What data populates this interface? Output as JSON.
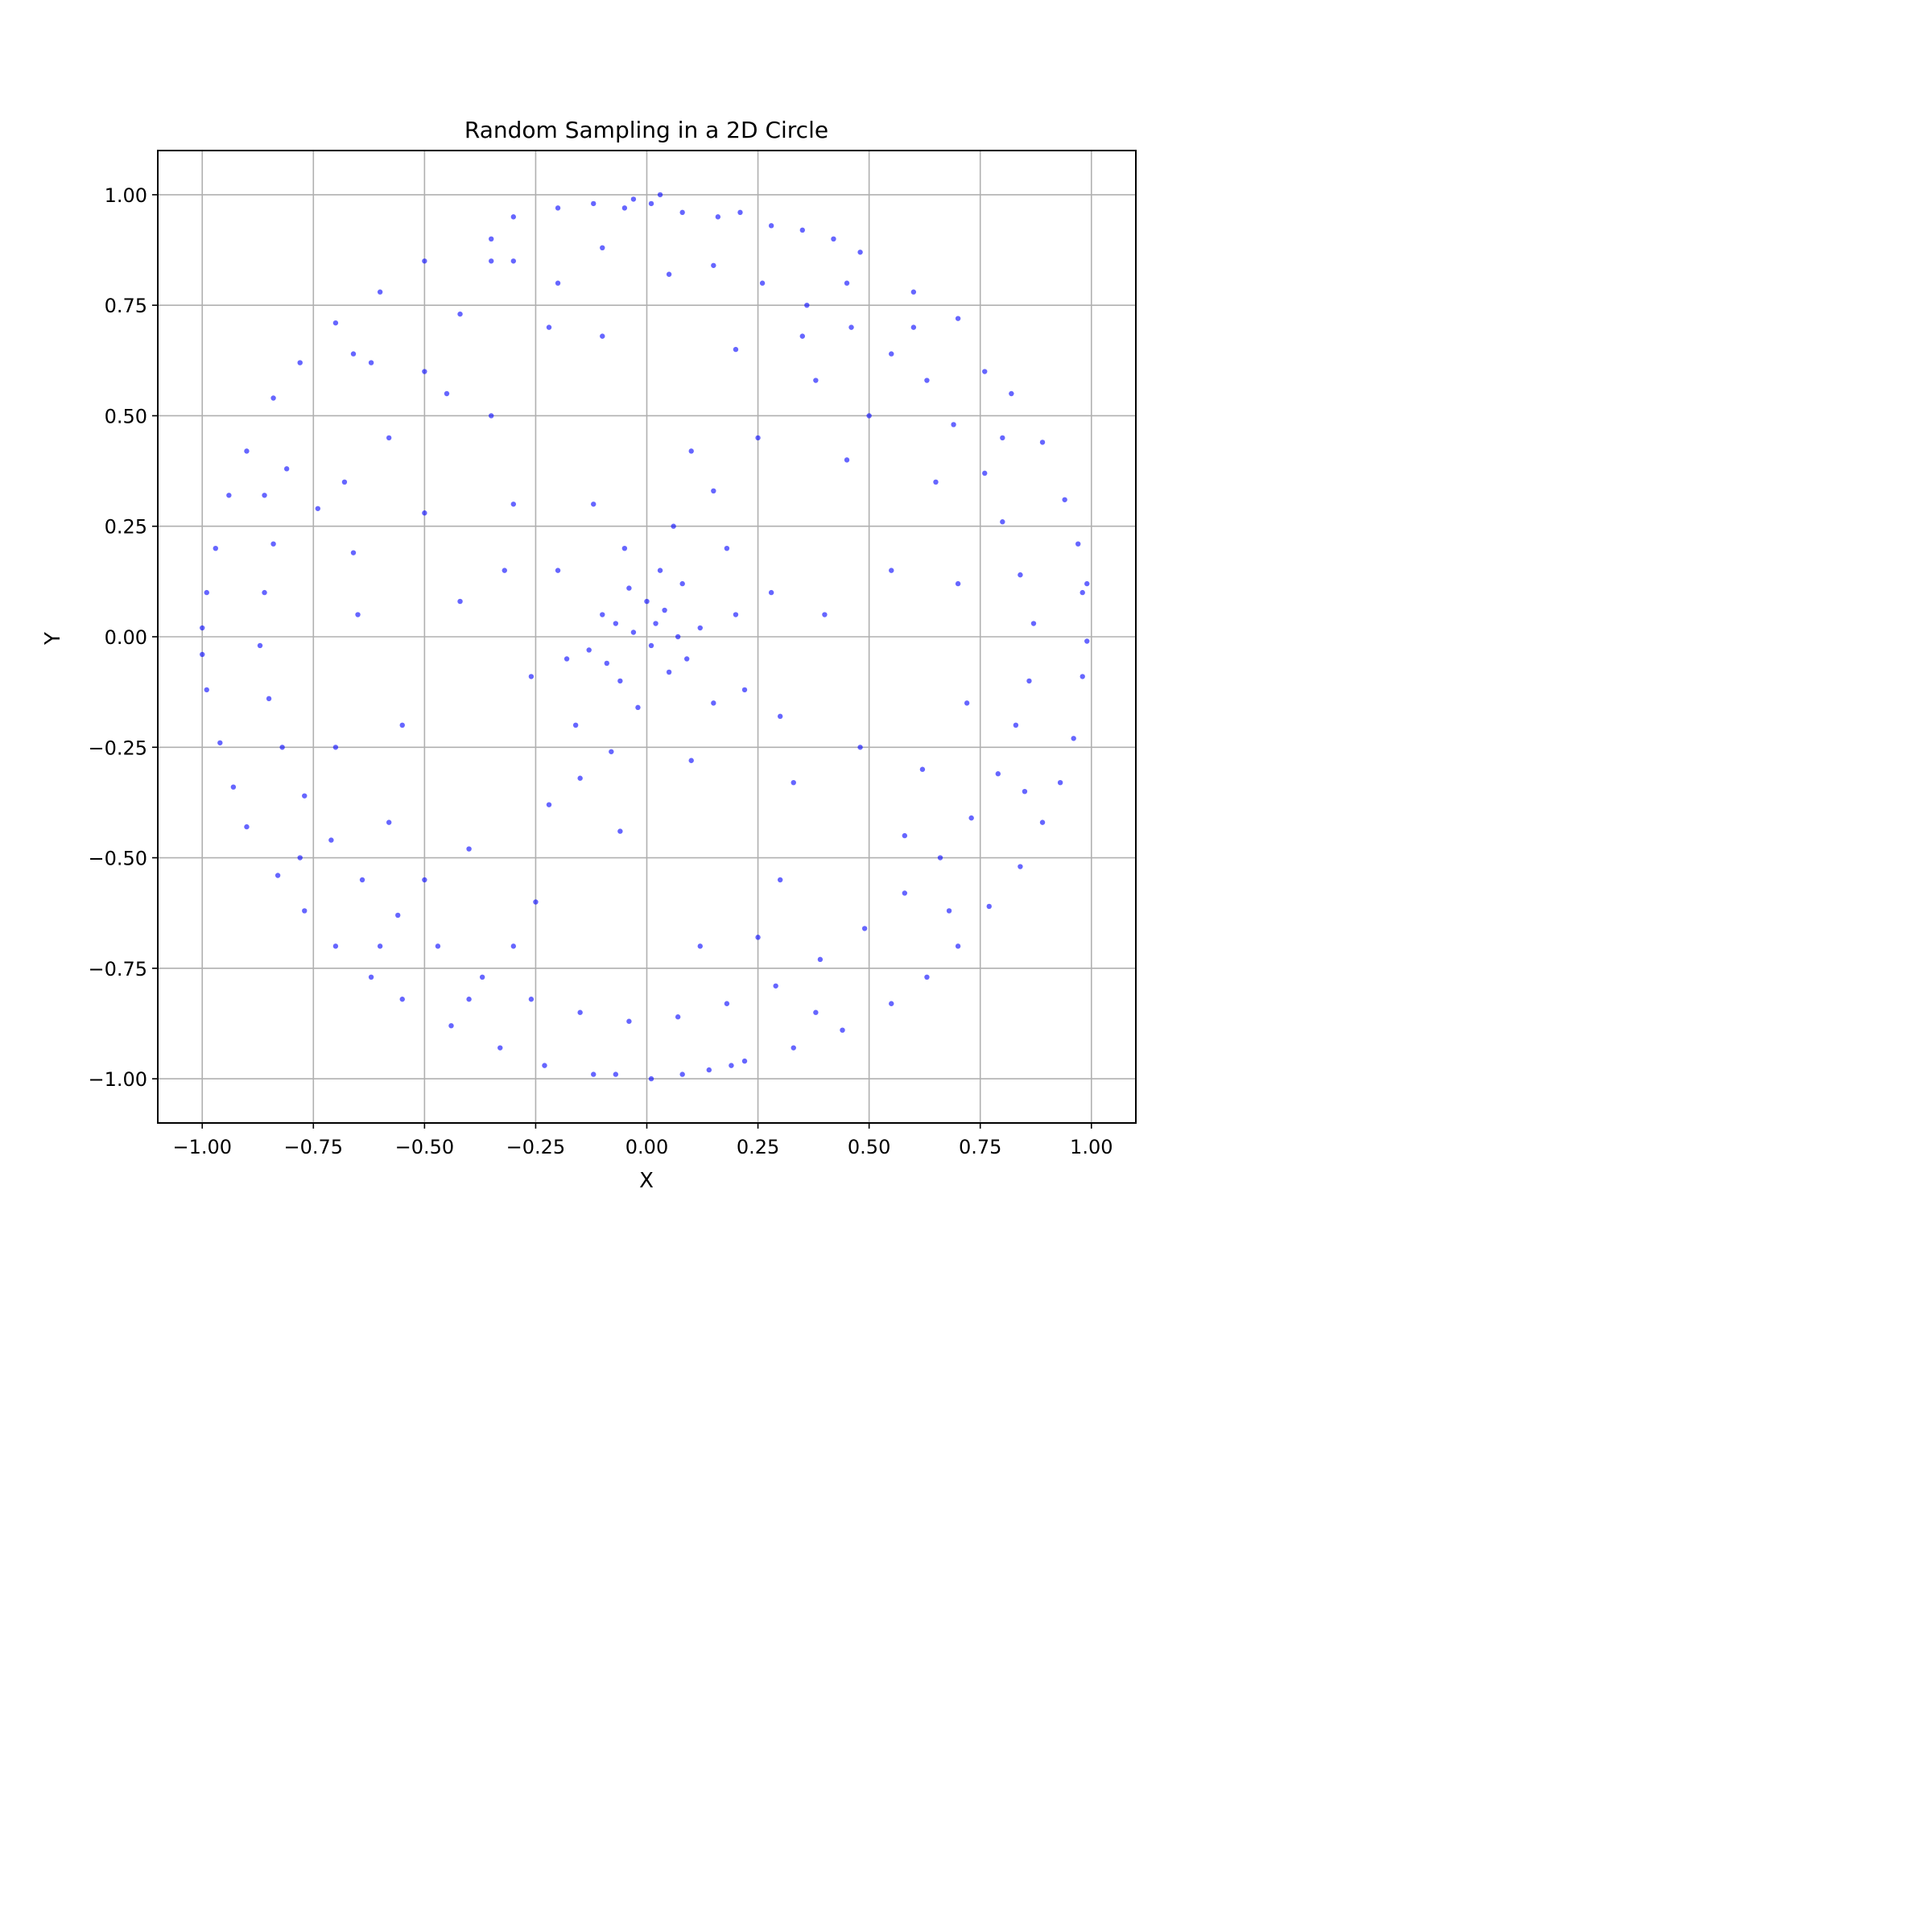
{
  "chart_data": {
    "type": "scatter",
    "title": "Random Sampling in a 2D Circle",
    "xlabel": "X",
    "ylabel": "Y",
    "xlim": [
      -1.1,
      1.1
    ],
    "ylim": [
      -1.1,
      1.1
    ],
    "xticks": [
      -1.0,
      -0.75,
      -0.5,
      -0.25,
      0.0,
      0.25,
      0.5,
      0.75,
      1.0
    ],
    "xtick_labels": [
      "−1.00",
      "−0.75",
      "−0.50",
      "−0.25",
      "0.00",
      "0.25",
      "0.50",
      "0.75",
      "1.00"
    ],
    "yticks": [
      1.0,
      0.75,
      0.5,
      0.25,
      0.0,
      -0.25,
      -0.5,
      -0.75,
      -1.0
    ],
    "ytick_labels": [
      "1.00",
      "0.75",
      "0.50",
      "0.25",
      "0.00",
      "−0.25",
      "−0.50",
      "−0.75",
      "−1.00"
    ],
    "grid": true,
    "legend": "none",
    "marker_color": "#0000ff",
    "marker_alpha": 0.6,
    "distribution": "uniform angle and uniform radius in the unit circle (points concentrate near the center)",
    "series": [
      {
        "points": [
          [
            0.03,
            1.0
          ],
          [
            -0.03,
            0.99
          ],
          [
            0.01,
            0.98
          ],
          [
            -0.05,
            0.97
          ],
          [
            0.08,
            0.96
          ],
          [
            -0.12,
            0.98
          ],
          [
            0.21,
            0.96
          ],
          [
            0.16,
            0.95
          ],
          [
            -0.2,
            0.97
          ],
          [
            -0.3,
            0.95
          ],
          [
            0.28,
            0.93
          ],
          [
            0.35,
            0.92
          ],
          [
            -0.35,
            0.9
          ],
          [
            0.42,
            0.9
          ],
          [
            -0.5,
            0.85
          ],
          [
            0.48,
            0.87
          ],
          [
            -0.6,
            0.78
          ],
          [
            0.6,
            0.78
          ],
          [
            -0.7,
            0.71
          ],
          [
            0.7,
            0.72
          ],
          [
            -0.78,
            0.62
          ],
          [
            0.76,
            0.6
          ],
          [
            -0.84,
            0.54
          ],
          [
            0.82,
            0.55
          ],
          [
            -0.9,
            0.42
          ],
          [
            0.89,
            0.44
          ],
          [
            -0.94,
            0.32
          ],
          [
            0.94,
            0.31
          ],
          [
            -0.97,
            0.2
          ],
          [
            0.97,
            0.21
          ],
          [
            -0.99,
            0.1
          ],
          [
            0.98,
            0.1
          ],
          [
            -1.0,
            0.02
          ],
          [
            0.99,
            0.12
          ],
          [
            -1.0,
            -0.04
          ],
          [
            0.99,
            -0.01
          ],
          [
            -0.99,
            -0.12
          ],
          [
            0.98,
            -0.09
          ],
          [
            -0.96,
            -0.24
          ],
          [
            0.96,
            -0.23
          ],
          [
            -0.93,
            -0.34
          ],
          [
            0.93,
            -0.33
          ],
          [
            -0.9,
            -0.43
          ],
          [
            0.89,
            -0.42
          ],
          [
            -0.83,
            -0.54
          ],
          [
            0.84,
            -0.52
          ],
          [
            -0.77,
            -0.62
          ],
          [
            0.77,
            -0.61
          ],
          [
            -0.7,
            -0.7
          ],
          [
            0.7,
            -0.7
          ],
          [
            -0.62,
            -0.77
          ],
          [
            0.63,
            -0.77
          ],
          [
            -0.55,
            -0.82
          ],
          [
            0.55,
            -0.83
          ],
          [
            -0.44,
            -0.88
          ],
          [
            0.44,
            -0.89
          ],
          [
            -0.33,
            -0.93
          ],
          [
            0.33,
            -0.93
          ],
          [
            -0.23,
            -0.97
          ],
          [
            0.22,
            -0.96
          ],
          [
            -0.12,
            -0.99
          ],
          [
            0.08,
            -0.99
          ],
          [
            0.01,
            -1.0
          ],
          [
            -0.07,
            -0.99
          ],
          [
            0.14,
            -0.98
          ],
          [
            0.19,
            -0.97
          ],
          [
            -0.81,
            0.38
          ],
          [
            -0.74,
            0.29
          ],
          [
            -0.66,
            0.19
          ],
          [
            -0.58,
            0.45
          ],
          [
            -0.5,
            0.6
          ],
          [
            -0.42,
            0.73
          ],
          [
            -0.3,
            0.85
          ],
          [
            -0.2,
            0.8
          ],
          [
            -0.1,
            0.88
          ],
          [
            0.05,
            0.82
          ],
          [
            0.15,
            0.84
          ],
          [
            0.26,
            0.8
          ],
          [
            0.36,
            0.75
          ],
          [
            0.46,
            0.7
          ],
          [
            0.55,
            0.64
          ],
          [
            0.63,
            0.58
          ],
          [
            0.69,
            0.48
          ],
          [
            0.76,
            0.37
          ],
          [
            0.8,
            0.26
          ],
          [
            0.84,
            0.14
          ],
          [
            0.87,
            0.03
          ],
          [
            0.86,
            -0.1
          ],
          [
            0.83,
            -0.2
          ],
          [
            0.79,
            -0.31
          ],
          [
            0.73,
            -0.41
          ],
          [
            0.66,
            -0.5
          ],
          [
            0.58,
            -0.58
          ],
          [
            0.49,
            -0.66
          ],
          [
            0.39,
            -0.73
          ],
          [
            0.29,
            -0.79
          ],
          [
            0.18,
            -0.83
          ],
          [
            0.07,
            -0.86
          ],
          [
            -0.04,
            -0.87
          ],
          [
            -0.15,
            -0.85
          ],
          [
            -0.26,
            -0.82
          ],
          [
            -0.37,
            -0.77
          ],
          [
            -0.47,
            -0.7
          ],
          [
            -0.56,
            -0.63
          ],
          [
            -0.64,
            -0.55
          ],
          [
            -0.71,
            -0.46
          ],
          [
            -0.77,
            -0.36
          ],
          [
            -0.82,
            -0.25
          ],
          [
            -0.85,
            -0.14
          ],
          [
            -0.87,
            -0.02
          ],
          [
            -0.86,
            0.1
          ],
          [
            -0.84,
            0.21
          ],
          [
            -0.62,
            0.62
          ],
          [
            0.62,
            -0.3
          ],
          [
            -0.55,
            -0.2
          ],
          [
            0.45,
            0.4
          ],
          [
            -0.35,
            0.5
          ],
          [
            0.3,
            -0.55
          ],
          [
            -0.25,
            -0.6
          ],
          [
            0.2,
            0.65
          ],
          [
            -0.65,
            0.05
          ],
          [
            0.7,
            0.12
          ],
          [
            -0.1,
            0.68
          ],
          [
            0.12,
            -0.7
          ],
          [
            0.48,
            -0.25
          ],
          [
            -0.5,
            0.28
          ],
          [
            0.55,
            0.15
          ],
          [
            -0.58,
            -0.42
          ],
          [
            0.38,
            0.58
          ],
          [
            -0.4,
            -0.48
          ],
          [
            0.25,
            0.45
          ],
          [
            -0.3,
            0.3
          ],
          [
            0.33,
            -0.33
          ],
          [
            -0.22,
            -0.38
          ],
          [
            0.4,
            0.05
          ],
          [
            -0.42,
            0.08
          ],
          [
            0.1,
            0.42
          ],
          [
            -0.06,
            -0.44
          ],
          [
            0.18,
            0.2
          ],
          [
            -0.2,
            0.15
          ],
          [
            0.22,
            -0.12
          ],
          [
            -0.16,
            -0.2
          ],
          [
            0.08,
            0.12
          ],
          [
            -0.1,
            0.05
          ],
          [
            0.05,
            -0.08
          ],
          [
            -0.06,
            -0.1
          ],
          [
            0.02,
            0.03
          ],
          [
            -0.03,
            0.01
          ],
          [
            0.01,
            -0.02
          ],
          [
            0.12,
            0.02
          ],
          [
            -0.13,
            -0.03
          ],
          [
            0.03,
            0.15
          ],
          [
            -0.02,
            -0.16
          ],
          [
            0.28,
            0.1
          ],
          [
            -0.26,
            -0.09
          ],
          [
            0.1,
            -0.28
          ],
          [
            -0.12,
            0.3
          ],
          [
            0.15,
            0.33
          ],
          [
            -0.32,
            0.15
          ],
          [
            0.3,
            -0.18
          ],
          [
            -0.15,
            -0.32
          ],
          [
            0.06,
            0.25
          ],
          [
            -0.08,
            -0.26
          ],
          [
            0.2,
            0.05
          ],
          [
            -0.05,
            0.2
          ],
          [
            0.15,
            -0.15
          ],
          [
            -0.18,
            -0.05
          ],
          [
            0.0,
            0.08
          ],
          [
            0.07,
            0.0
          ],
          [
            -0.04,
            0.11
          ],
          [
            0.09,
            -0.05
          ],
          [
            -0.09,
            -0.06
          ],
          [
            0.04,
            0.06
          ],
          [
            -0.07,
            0.03
          ],
          [
            0.5,
            0.5
          ],
          [
            -0.5,
            -0.55
          ],
          [
            0.58,
            -0.45
          ],
          [
            -0.45,
            0.55
          ],
          [
            0.65,
            0.35
          ],
          [
            -0.7,
            -0.25
          ],
          [
            0.72,
            -0.15
          ],
          [
            -0.68,
            0.35
          ],
          [
            0.35,
            0.68
          ],
          [
            -0.3,
            -0.7
          ],
          [
            0.25,
            -0.68
          ],
          [
            -0.22,
            0.7
          ],
          [
            0.8,
            0.45
          ],
          [
            -0.78,
            -0.5
          ],
          [
            0.85,
            -0.35
          ],
          [
            -0.86,
            0.32
          ],
          [
            0.45,
            0.8
          ],
          [
            -0.4,
            -0.82
          ],
          [
            0.38,
            -0.85
          ],
          [
            -0.35,
            0.85
          ],
          [
            0.6,
            0.7
          ],
          [
            -0.6,
            -0.7
          ],
          [
            0.68,
            -0.62
          ],
          [
            -0.66,
            0.64
          ]
        ]
      }
    ]
  }
}
